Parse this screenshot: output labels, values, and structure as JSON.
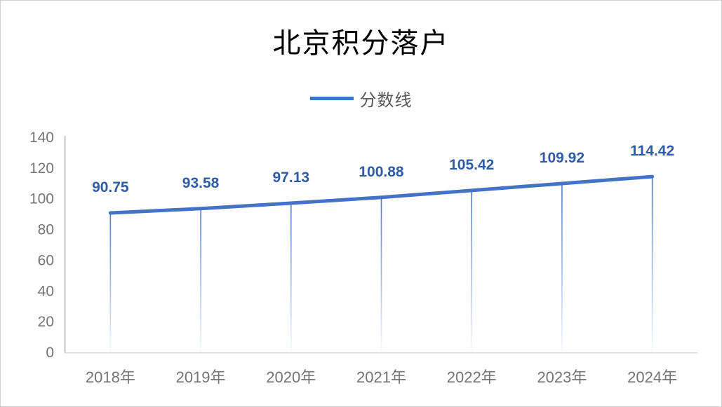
{
  "chart": {
    "title": "北京积分落户",
    "legend_label": "分数线"
  },
  "chart_data": {
    "type": "line",
    "title": "北京积分落户",
    "categories": [
      "2018年",
      "2019年",
      "2020年",
      "2021年",
      "2022年",
      "2023年",
      "2024年"
    ],
    "series": [
      {
        "name": "分数线",
        "values": [
          90.75,
          93.58,
          97.13,
          100.88,
          105.42,
          109.92,
          114.42
        ]
      }
    ],
    "xlabel": "",
    "ylabel": "",
    "ylim": [
      0,
      140
    ],
    "ytick_step": 20,
    "grid": false,
    "legend_position": "top-center",
    "data_labels": true,
    "drop_lines": true
  },
  "colors": {
    "series_line": "#4472C4",
    "data_label": "#2F5CA8",
    "axis_label": "#757575",
    "legend_text": "#595959",
    "y_axis_line": "#C6C6C6",
    "x_axis_line": "#D9D9D9",
    "title_text": "#000000",
    "background": "#FFFFFF"
  }
}
